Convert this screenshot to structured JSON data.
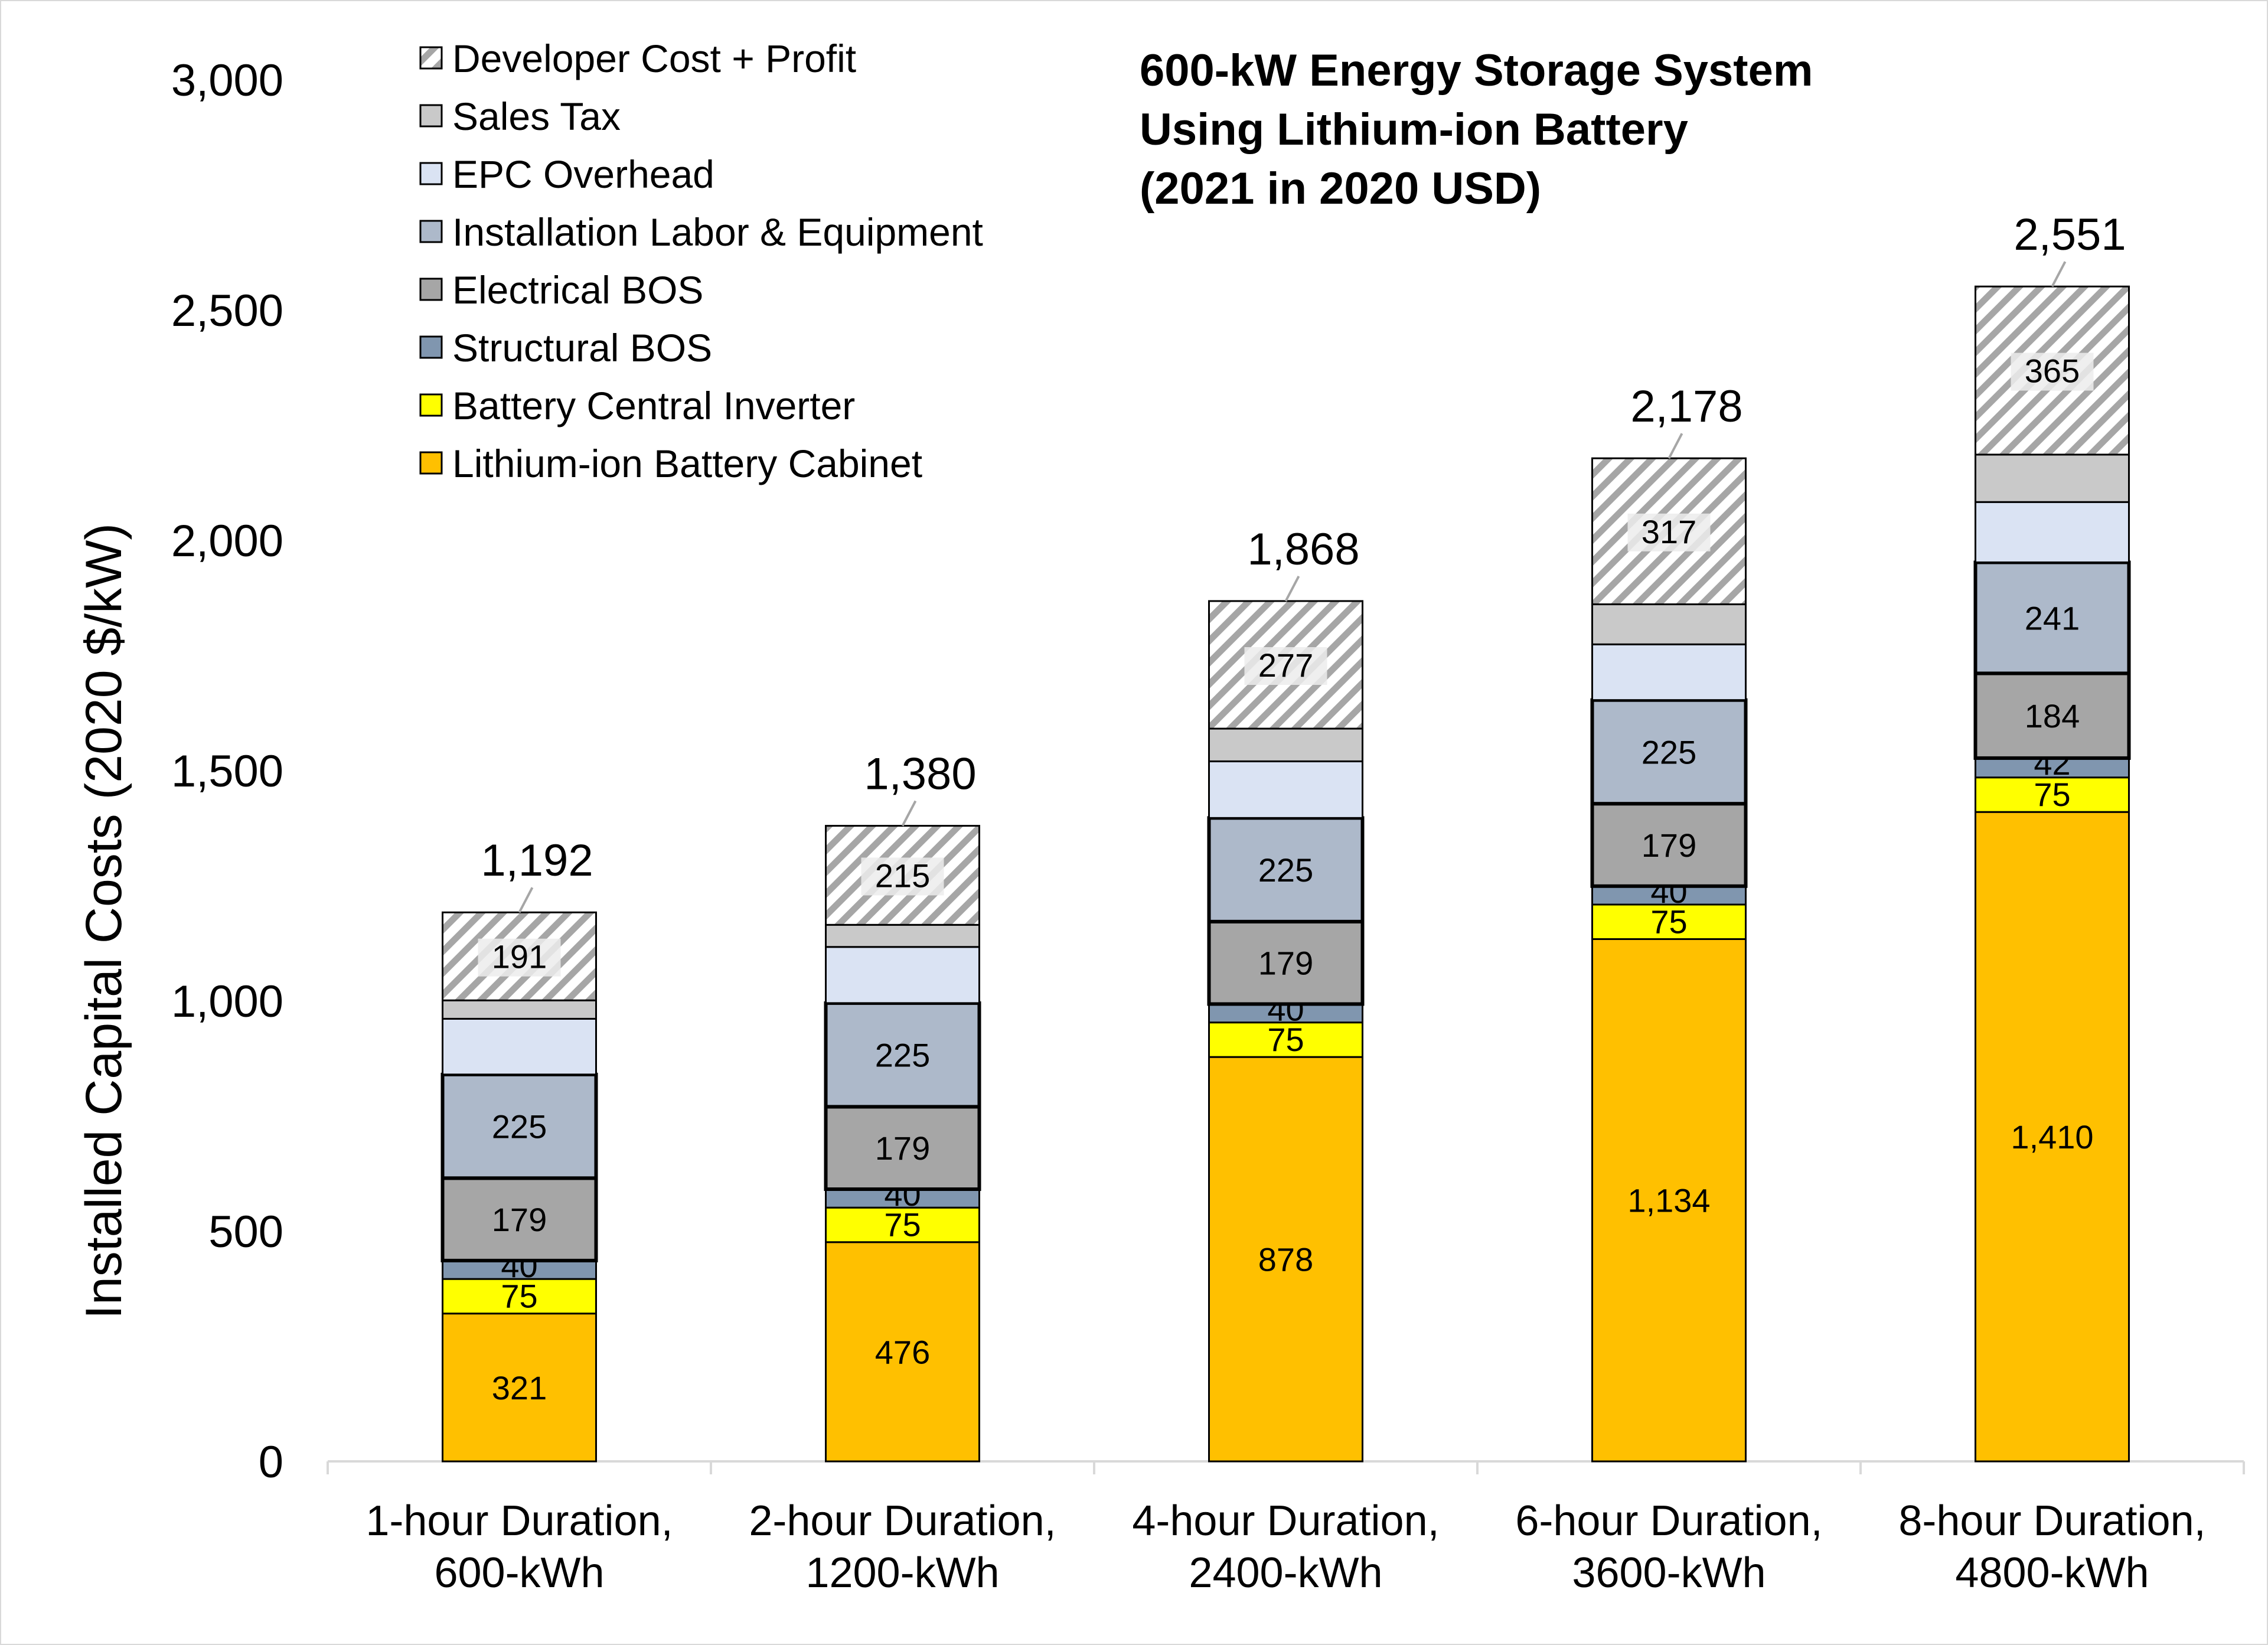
{
  "chart_data": {
    "type": "bar",
    "stacked": true,
    "title": [
      "600-kW Energy Storage System",
      "Using Lithium-ion Battery",
      "(2021 in 2020 USD)"
    ],
    "xlabel": "",
    "ylabel": "Installed Capital Costs (2020 $/kW)",
    "ylim": [
      0,
      3000
    ],
    "yticks": [
      "0",
      "500",
      "1,000",
      "1,500",
      "2,000",
      "2,500",
      "3,000"
    ],
    "ytick_values": [
      0,
      500,
      1000,
      1500,
      2000,
      2500,
      3000
    ],
    "grid": false,
    "legend_position": "top-left",
    "categories": [
      [
        "1-hour Duration,",
        "600-kWh"
      ],
      [
        "2-hour Duration,",
        "1200-kWh"
      ],
      [
        "4-hour Duration,",
        "2400-kWh"
      ],
      [
        "6-hour Duration,",
        "3600-kWh"
      ],
      [
        "8-hour Duration,",
        "4800-kWh"
      ]
    ],
    "series": [
      {
        "name": "Lithium-ion Battery Cabinet",
        "color": "#FFC000",
        "values": [
          321,
          476,
          878,
          1134,
          1410
        ],
        "labels": [
          "321",
          "476",
          "878",
          "1,134",
          "1,410"
        ]
      },
      {
        "name": "Battery Central Inverter",
        "color": "#FFFF00",
        "values": [
          75,
          75,
          75,
          75,
          75
        ],
        "labels": [
          "75",
          "75",
          "75",
          "75",
          "75"
        ]
      },
      {
        "name": "Structural BOS",
        "color": "#8096AF",
        "values": [
          40,
          40,
          40,
          40,
          42
        ],
        "labels": [
          "40",
          "40",
          "40",
          "40",
          "42"
        ]
      },
      {
        "name": "Electrical BOS",
        "color": "#A6A6A6",
        "values": [
          179,
          179,
          179,
          179,
          184
        ],
        "labels": [
          "179",
          "179",
          "179",
          "179",
          "184"
        ]
      },
      {
        "name": "Installation Labor & Equipment",
        "color": "#ADB9CA",
        "values": [
          225,
          225,
          225,
          225,
          241
        ],
        "labels": [
          "225",
          "225",
          "225",
          "225",
          "241"
        ]
      },
      {
        "name": "EPC Overhead",
        "color": "#DAE3F3",
        "values": [
          121,
          122,
          123,
          121,
          131
        ],
        "labels": null
      },
      {
        "name": "Sales Tax",
        "color": "#C9C9C9",
        "values": [
          40,
          48,
          71,
          87,
          103
        ],
        "labels": null
      },
      {
        "name": "Developer Cost + Profit",
        "color": "hatch",
        "values": [
          191,
          215,
          277,
          317,
          365
        ],
        "labels": [
          "191",
          "215",
          "277",
          "317",
          "365"
        ]
      }
    ],
    "totals": [
      1192,
      1380,
      1868,
      2178,
      2551
    ],
    "total_labels": [
      "1,192",
      "1,380",
      "1,868",
      "2,178",
      "2,551"
    ]
  }
}
